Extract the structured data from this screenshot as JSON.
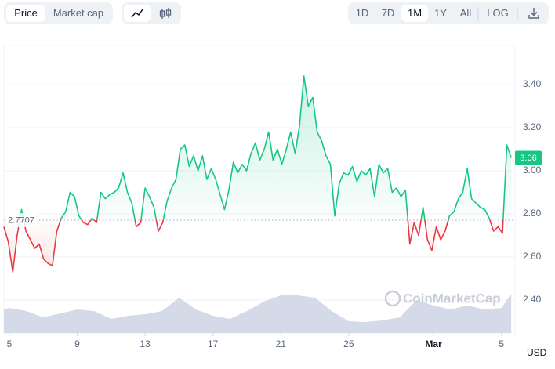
{
  "toolbar": {
    "metrics": [
      "Price",
      "Market cap"
    ],
    "ranges": [
      "1D",
      "7D",
      "1M",
      "1Y",
      "All"
    ],
    "log": "LOG"
  },
  "currency": "USD",
  "watermark": "CoinMarketCap",
  "chart_data": {
    "type": "line",
    "x": [
      4.68,
      4.94,
      5.2,
      5.46,
      5.72,
      5.98,
      6.24,
      6.5,
      6.76,
      7.02,
      7.28,
      7.54,
      7.8,
      8.06,
      8.32,
      8.58,
      8.84,
      9.1,
      9.36,
      9.62,
      9.88,
      10.14,
      10.4,
      10.66,
      10.92,
      11.18,
      11.44,
      11.7,
      11.96,
      12.22,
      12.48,
      12.74,
      13,
      13.26,
      13.52,
      13.78,
      14.04,
      14.3,
      14.56,
      14.82,
      15.08,
      15.34,
      15.6,
      15.86,
      16.12,
      16.38,
      16.64,
      16.9,
      17.16,
      17.42,
      17.68,
      17.94,
      18.2,
      18.46,
      18.72,
      18.98,
      19.24,
      19.5,
      19.76,
      20.02,
      20.28,
      20.54,
      20.8,
      21.06,
      21.32,
      21.58,
      21.84,
      22.1,
      22.36,
      22.62,
      22.88,
      23.14,
      23.4,
      23.66,
      23.92,
      24.18,
      24.44,
      24.7,
      24.96,
      25.22,
      25.48,
      25.74,
      26,
      26.26,
      26.52,
      26.78,
      27.04,
      27.3,
      27.56,
      27.82,
      28.08,
      28.34,
      28.6,
      28.86,
      29.12,
      29.38,
      29.64,
      29.9,
      30.16,
      30.42,
      30.68,
      30.94,
      31.2,
      31.46,
      31.72,
      31.98,
      32.24,
      32.5,
      32.76,
      33.02,
      33.28,
      33.54,
      33.8,
      34.06,
      34.32,
      34.58
    ],
    "values": [
      2.74,
      2.67,
      2.53,
      2.7,
      2.82,
      2.72,
      2.68,
      2.64,
      2.66,
      2.59,
      2.57,
      2.56,
      2.72,
      2.78,
      2.81,
      2.9,
      2.88,
      2.79,
      2.76,
      2.75,
      2.78,
      2.76,
      2.9,
      2.87,
      2.89,
      2.9,
      2.92,
      2.99,
      2.9,
      2.85,
      2.74,
      2.76,
      2.92,
      2.88,
      2.83,
      2.72,
      2.76,
      2.86,
      2.92,
      2.96,
      3.1,
      3.12,
      3.02,
      3.07,
      3.0,
      3.07,
      2.96,
      3.01,
      2.96,
      2.89,
      2.82,
      2.91,
      3.04,
      2.99,
      3.03,
      3.0,
      3.08,
      3.13,
      3.05,
      3.1,
      3.18,
      3.05,
      3.1,
      3.03,
      3.1,
      3.18,
      3.08,
      3.21,
      3.44,
      3.3,
      3.34,
      3.18,
      3.14,
      3.07,
      3.03,
      2.79,
      2.94,
      2.99,
      2.98,
      3.02,
      2.95,
      3.0,
      2.98,
      3.01,
      2.88,
      3.03,
      2.99,
      3.01,
      2.9,
      2.92,
      2.88,
      2.91,
      2.66,
      2.76,
      2.7,
      2.83,
      2.68,
      2.63,
      2.74,
      2.68,
      2.72,
      2.79,
      2.81,
      2.87,
      2.9,
      3.01,
      2.87,
      2.85,
      2.83,
      2.82,
      2.78,
      2.72,
      2.74,
      2.71,
      3.12,
      3.06
    ],
    "up_color": "#16c784",
    "down_color": "#ea3943",
    "baseline": 2.7707,
    "last_price": 3.06,
    "xlim": [
      4.68,
      34.8
    ],
    "xticks": [
      5,
      9,
      13,
      17,
      21,
      25,
      {
        "value": 30,
        "label": "Mar"
      },
      {
        "value": 34,
        "label": "5"
      }
    ],
    "ylim": [
      2.247,
      3.582
    ],
    "yticks": [
      {
        "value": 2.4,
        "label": "2.40"
      },
      {
        "value": 2.6,
        "label": "2.60"
      },
      {
        "value": 2.8,
        "label": "2.80"
      },
      {
        "value": 3.0,
        "label": "3.00"
      },
      {
        "value": 3.2,
        "label": "3.20"
      },
      {
        "value": 3.4,
        "label": "3.40"
      }
    ],
    "grid": true,
    "volume": {
      "color": "#cfd6e4",
      "x": [
        4.68,
        5,
        6,
        7,
        8,
        9,
        10,
        11,
        12,
        13,
        14,
        15,
        16,
        17,
        18,
        19,
        20,
        21,
        22,
        23,
        24,
        25,
        26,
        27,
        28,
        29,
        30,
        31,
        32,
        33,
        34,
        34.58
      ],
      "values": [
        30,
        32,
        28,
        20,
        25,
        30,
        28,
        18,
        22,
        24,
        28,
        45,
        30,
        22,
        18,
        28,
        40,
        48,
        48,
        45,
        28,
        15,
        14,
        16,
        20,
        42,
        35,
        30,
        35,
        30,
        32,
        50
      ]
    }
  }
}
